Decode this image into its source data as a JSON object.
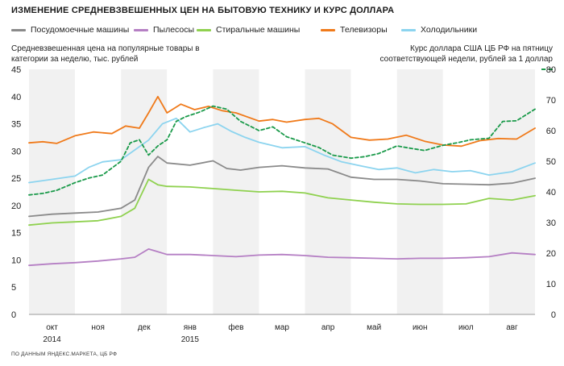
{
  "title": "ИЗМЕНЕНИЕ СРЕДНЕВЗВЕШЕННЫХ ЦЕН НА БЫТОВУЮ ТЕХНИКУ И КУРС ДОЛЛАРА",
  "left_axis_note": "Средневзвешенная цена на популярные товары в категории за неделю, тыс. рублей",
  "right_axis_note": "Курс доллара США ЦБ РФ на пятницу соответствующей недели, рублей за 1 доллар",
  "source": "ПО ДАННЫМ ЯНДЕКС.МАРКЕТА, ЦБ РФ",
  "chart_data": {
    "type": "line",
    "x": [
      "окт",
      "ноя",
      "дек",
      "янв",
      "фев",
      "мар",
      "апр",
      "май",
      "июн",
      "июл",
      "авг"
    ],
    "x_sublabels": [
      {
        "at": "окт",
        "text": "2014"
      },
      {
        "at": "янв",
        "text": "2015"
      }
    ],
    "x_range": [
      0,
      11
    ],
    "left_axis": {
      "ylim": [
        0,
        45
      ],
      "ticks": [
        0,
        5,
        10,
        15,
        20,
        25,
        30,
        35,
        40,
        45
      ]
    },
    "right_axis": {
      "ylim": [
        0,
        80
      ],
      "ticks": [
        0,
        10,
        20,
        30,
        40,
        50,
        60,
        70,
        80
      ]
    },
    "grid": "vertical month bands",
    "series": [
      {
        "name": "Посудомоечные машины",
        "color": "#8a8a8a",
        "axis": "left",
        "style": "solid",
        "x": [
          0,
          0.5,
          1,
          1.5,
          2,
          2.3,
          2.6,
          2.8,
          3,
          3.5,
          4,
          4.3,
          4.6,
          5,
          5.5,
          6,
          6.5,
          7,
          7.5,
          8,
          8.5,
          9,
          9.5,
          10,
          10.5,
          11
        ],
        "y": [
          18,
          18.4,
          18.6,
          18.8,
          19.5,
          21,
          27,
          29,
          27.8,
          27.4,
          28.2,
          26.8,
          26.5,
          27,
          27.3,
          26.9,
          26.7,
          25.2,
          24.8,
          24.8,
          24.5,
          24,
          23.9,
          23.8,
          24.1,
          25
        ]
      },
      {
        "name": "Пылесосы",
        "color": "#b57fc4",
        "axis": "left",
        "style": "solid",
        "x": [
          0,
          0.5,
          1,
          1.5,
          2,
          2.3,
          2.6,
          2.8,
          3,
          3.5,
          4,
          4.5,
          5,
          5.5,
          6,
          6.5,
          7,
          7.5,
          8,
          8.5,
          9,
          9.5,
          10,
          10.5,
          11
        ],
        "y": [
          9,
          9.3,
          9.5,
          9.8,
          10.2,
          10.5,
          12,
          11.5,
          11,
          11,
          10.8,
          10.6,
          10.9,
          11,
          10.8,
          10.5,
          10.4,
          10.3,
          10.2,
          10.3,
          10.3,
          10.4,
          10.6,
          11.3,
          11
        ]
      },
      {
        "name": "Стиральные машины",
        "color": "#8fd14f",
        "axis": "left",
        "style": "solid",
        "x": [
          0,
          0.5,
          1,
          1.5,
          2,
          2.3,
          2.6,
          2.8,
          3,
          3.5,
          4,
          4.5,
          5,
          5.5,
          6,
          6.5,
          7,
          7.5,
          8,
          8.5,
          9,
          9.5,
          10,
          10.5,
          11
        ],
        "y": [
          16.4,
          16.8,
          17,
          17.2,
          18,
          19.5,
          24.8,
          23.8,
          23.5,
          23.4,
          23.1,
          22.8,
          22.5,
          22.6,
          22.3,
          21.4,
          21,
          20.6,
          20.3,
          20.2,
          20.2,
          20.3,
          21.3,
          21,
          21.8
        ]
      },
      {
        "name": "Телевизоры",
        "color": "#f07a1a",
        "axis": "left",
        "style": "solid",
        "x": [
          0,
          0.3,
          0.6,
          1,
          1.4,
          1.8,
          2.1,
          2.4,
          2.6,
          2.8,
          3,
          3.3,
          3.6,
          3.9,
          4.2,
          4.5,
          5,
          5.3,
          5.6,
          6,
          6.3,
          6.6,
          7,
          7.4,
          7.8,
          8.2,
          8.6,
          9,
          9.4,
          9.8,
          10.2,
          10.6,
          11
        ],
        "y": [
          31.5,
          31.7,
          31.4,
          32.8,
          33.5,
          33.2,
          34.6,
          34.2,
          37,
          40,
          37,
          38.6,
          37.6,
          38.2,
          37.4,
          37,
          35.5,
          35.8,
          35.3,
          35.8,
          36,
          35,
          32.5,
          32,
          32.2,
          32.9,
          31.8,
          31.1,
          30.9,
          31.9,
          32.3,
          32.2,
          34.2
        ]
      },
      {
        "name": "Холодильники",
        "color": "#8cd4ef",
        "axis": "left",
        "style": "solid",
        "x": [
          0,
          0.5,
          1,
          1.3,
          1.6,
          2,
          2.3,
          2.6,
          2.9,
          3.2,
          3.5,
          3.8,
          4.1,
          4.4,
          4.7,
          5,
          5.5,
          6,
          6.4,
          6.8,
          7.2,
          7.6,
          8,
          8.4,
          8.8,
          9.2,
          9.6,
          10,
          10.5,
          11
        ],
        "y": [
          24.2,
          24.8,
          25.4,
          27,
          28,
          28.4,
          30.2,
          32,
          35,
          36,
          33.5,
          34.3,
          35,
          33.6,
          32.5,
          31.6,
          30.6,
          30.8,
          29.3,
          28,
          27.3,
          26.6,
          26.9,
          26,
          26.6,
          26.2,
          26.4,
          25.6,
          26.2,
          27.8
        ]
      },
      {
        "name": "Курс доллара",
        "color": "#1a9a4a",
        "axis": "right",
        "style": "dashed",
        "x": [
          0,
          0.3,
          0.6,
          1,
          1.3,
          1.6,
          2,
          2.2,
          2.4,
          2.6,
          2.8,
          3,
          3.2,
          3.4,
          3.7,
          4,
          4.3,
          4.6,
          5,
          5.3,
          5.6,
          6,
          6.3,
          6.6,
          7,
          7.3,
          7.6,
          8,
          8.3,
          8.6,
          9,
          9.3,
          9.6,
          10,
          10.3,
          10.6,
          11
        ],
        "y": [
          39,
          39.5,
          40.5,
          43,
          44.5,
          45.5,
          50,
          56,
          57,
          52,
          55,
          57,
          63,
          64.5,
          66,
          68,
          67,
          63,
          60,
          61.2,
          58,
          56,
          54.5,
          52,
          51,
          51.5,
          52.5,
          55,
          54.2,
          53.5,
          55.2,
          56,
          57,
          57.5,
          63,
          63.2,
          67
        ]
      }
    ]
  }
}
